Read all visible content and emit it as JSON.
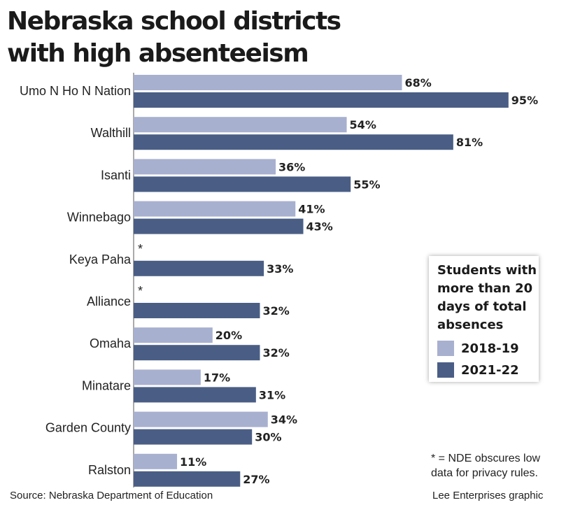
{
  "title_lines": [
    "Nebraska school districts",
    "with high absenteeism"
  ],
  "legend": {
    "title_lines": [
      "Students with",
      "more than 20",
      "days of total",
      "absences"
    ],
    "items": [
      {
        "label": "2018-19",
        "color": "#a8b0d0"
      },
      {
        "label": "2021-22",
        "color": "#4a5e85"
      }
    ]
  },
  "note_lines": [
    "* = NDE obscures low",
    "data for privacy rules."
  ],
  "source": "Source: Nebraska Department of Education",
  "credit": "Lee Enterprises graphic",
  "chart_data": {
    "type": "bar",
    "orientation": "horizontal",
    "categories": [
      "Umo N Ho N Nation",
      "Walthill",
      "Isanti",
      "Winnebago",
      "Keya Paha",
      "Alliance",
      "Omaha",
      "Minatare",
      "Garden County",
      "Ralston"
    ],
    "series": [
      {
        "name": "2018-19",
        "color": "#a8b0d0",
        "values": [
          68,
          54,
          36,
          41,
          null,
          null,
          20,
          17,
          34,
          11
        ],
        "labels": [
          "68%",
          "54%",
          "36%",
          "41%",
          "*",
          "*",
          "20%",
          "17%",
          "34%",
          "11%"
        ]
      },
      {
        "name": "2021-22",
        "color": "#4a5e85",
        "values": [
          95,
          81,
          55,
          43,
          33,
          32,
          32,
          31,
          30,
          27
        ],
        "labels": [
          "95%",
          "81%",
          "55%",
          "43%",
          "33%",
          "32%",
          "32%",
          "31%",
          "30%",
          "27%"
        ]
      }
    ],
    "xlim": [
      0,
      100
    ],
    "grid": false,
    "legend_position": "right"
  }
}
